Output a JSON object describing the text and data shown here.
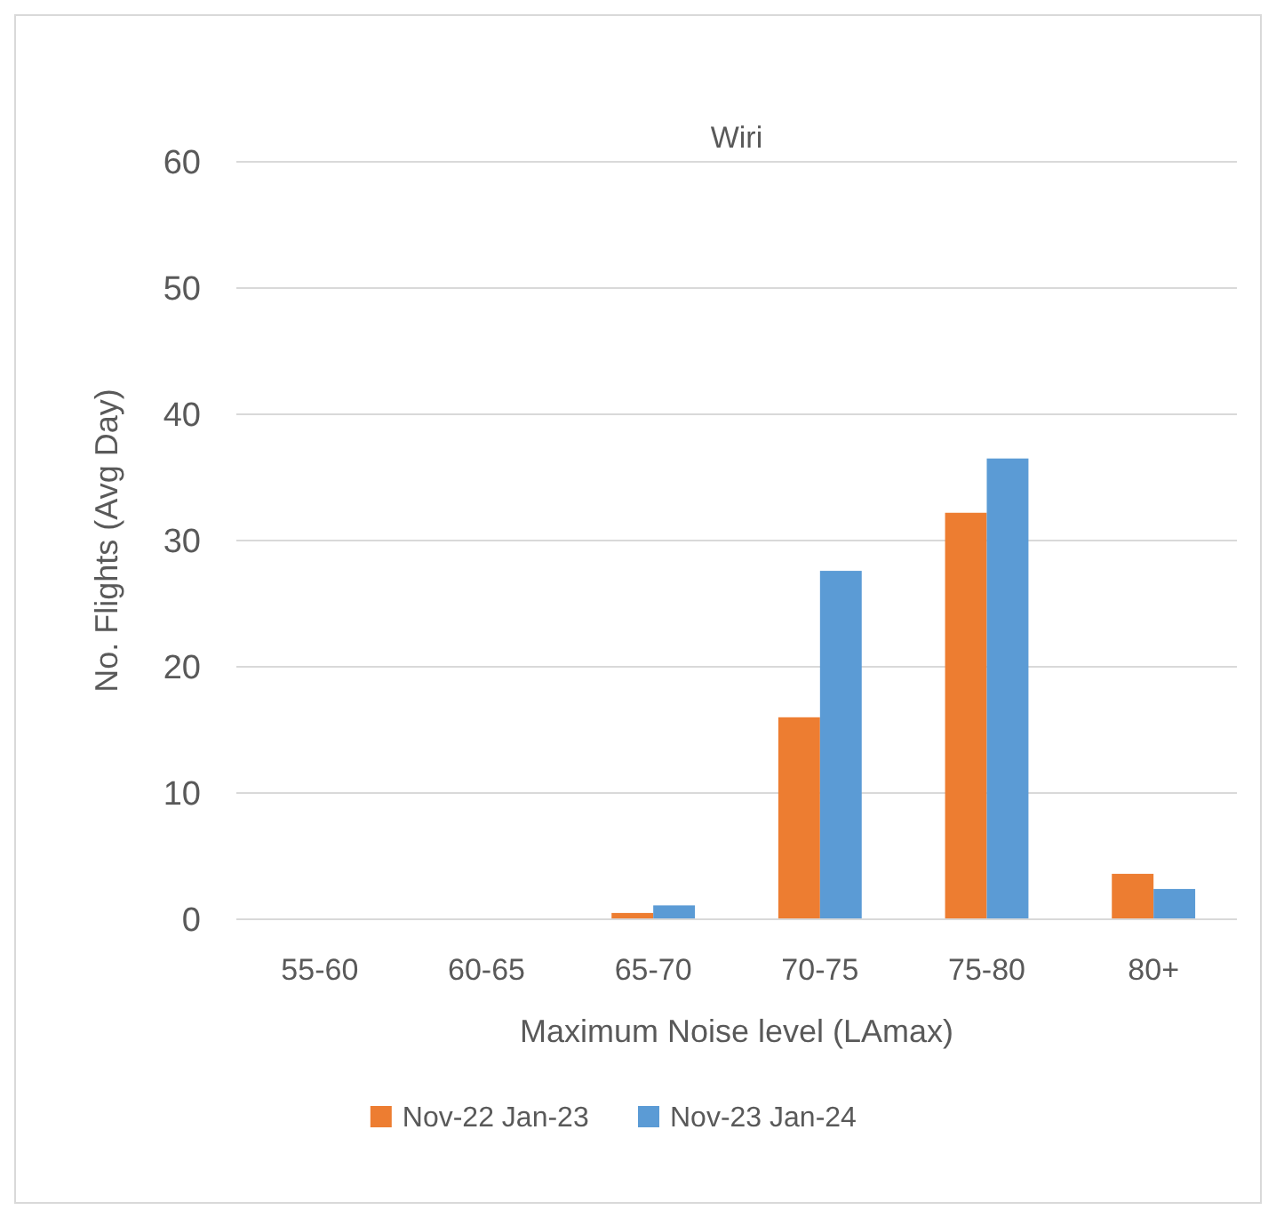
{
  "chart_data": {
    "type": "bar",
    "title": "Wiri",
    "xlabel": "Maximum Noise level (LAmax)",
    "ylabel": "No. Flights (Avg Day)",
    "categories": [
      "55-60",
      "60-65",
      "65-70",
      "70-75",
      "75-80",
      "80+"
    ],
    "series": [
      {
        "name": "Nov-22 Jan-23",
        "color": "#ed7d31",
        "values": [
          0,
          0,
          0.5,
          16,
          32.2,
          3.6
        ]
      },
      {
        "name": "Nov-23 Jan-24",
        "color": "#5b9bd5",
        "values": [
          0,
          0,
          1.1,
          27.6,
          36.5,
          2.4
        ]
      }
    ],
    "ylim": [
      0,
      60
    ],
    "yticks": [
      0,
      10,
      20,
      30,
      40,
      50,
      60
    ],
    "grid": "y",
    "legend": "bottom"
  }
}
